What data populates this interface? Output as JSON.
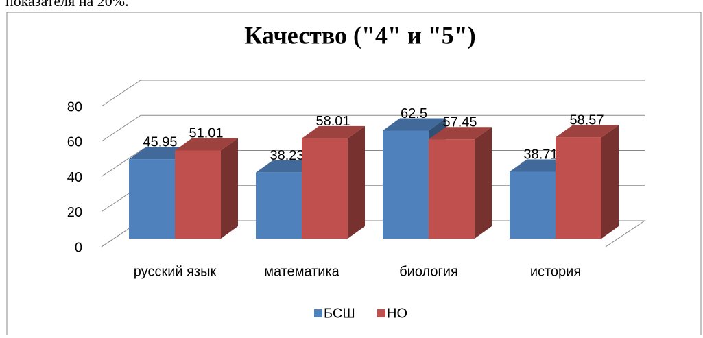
{
  "text_above": "показателя на 20%.",
  "chart_data": {
    "type": "bar3d",
    "title": "Качество (\"4\" и \"5\")",
    "categories": [
      "русский язык",
      "математика",
      "биология",
      "история"
    ],
    "series": [
      {
        "name": "БСШ",
        "color": "#4f81bd",
        "values": [
          45.95,
          38.23,
          62.5,
          38.71
        ]
      },
      {
        "name": "НО",
        "color": "#c0504d",
        "values": [
          51.01,
          58.01,
          57.45,
          58.57
        ]
      }
    ],
    "ylim": [
      0,
      80
    ],
    "yticks": [
      0,
      20,
      40,
      60,
      80
    ],
    "grid": true,
    "legend": "bottom"
  }
}
